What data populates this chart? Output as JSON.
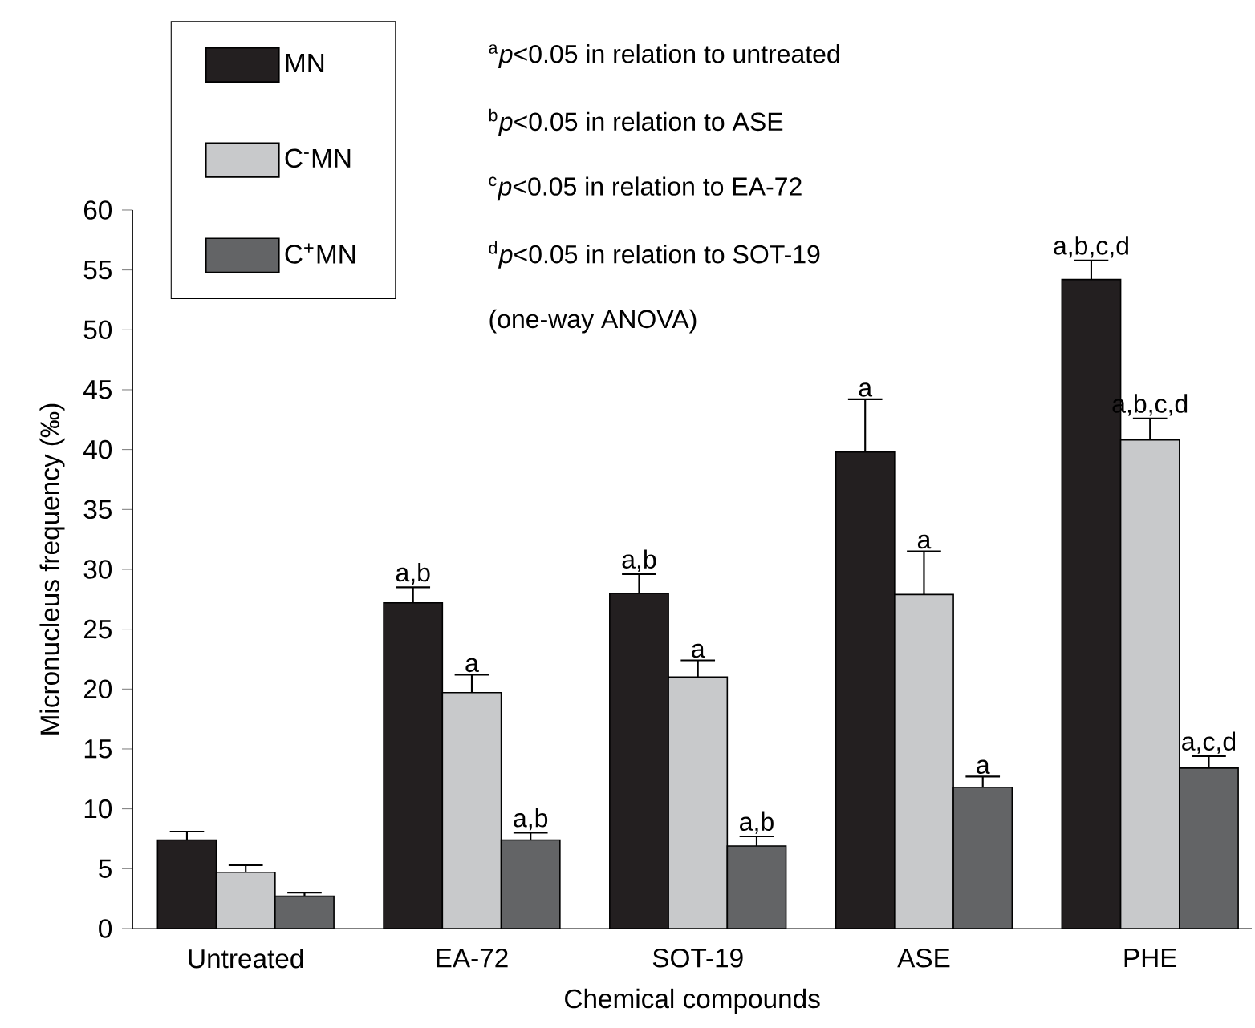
{
  "chart_data": {
    "type": "bar",
    "xlabel": "Chemical compounds",
    "ylabel": "Micronucleus frequency (‰)",
    "categories": [
      "Untreated",
      "EA-72",
      "SOT-19",
      "ASE",
      "PHE"
    ],
    "series": [
      {
        "name": "MN",
        "color": "#231f20",
        "values": [
          7.4,
          27.2,
          28.0,
          39.8,
          54.2
        ],
        "errors": [
          [
            7.4,
            8.1
          ],
          [
            27.2,
            28.5
          ],
          [
            28.0,
            29.6
          ],
          [
            39.8,
            44.2
          ],
          [
            54.2,
            55.8
          ]
        ],
        "value_labels": [
          null,
          "a,b",
          "a,b",
          "a",
          "a,b,c,d"
        ]
      },
      {
        "name": "C$^{-}$MN",
        "color": "#c8c9cb",
        "values": [
          4.7,
          19.7,
          21.0,
          27.9,
          40.8
        ],
        "errors": [
          [
            4.7,
            5.3
          ],
          [
            19.7,
            21.2
          ],
          [
            21.0,
            22.4
          ],
          [
            27.9,
            31.5
          ],
          [
            40.8,
            42.6
          ]
        ],
        "value_labels": [
          null,
          "a",
          "a",
          "a",
          "a,b,c,d"
        ]
      },
      {
        "name": "C$^{+}$MN",
        "color": "#636466",
        "values": [
          2.7,
          7.4,
          6.9,
          11.8,
          13.4
        ],
        "errors": [
          [
            2.7,
            3.0
          ],
          [
            7.4,
            8.0
          ],
          [
            6.9,
            7.7
          ],
          [
            11.8,
            12.7
          ],
          [
            13.4,
            14.4
          ]
        ],
        "value_labels": [
          null,
          "a,b",
          "a,b",
          "a",
          "a,c,d"
        ]
      }
    ],
    "ylim": [
      0,
      60
    ],
    "yticks": [
      0,
      5,
      10,
      15,
      20,
      25,
      30,
      35,
      40,
      45,
      50,
      55,
      60
    ],
    "legend": "top left",
    "grid": false,
    "annotations": [
      "$^{a}$*p*<0.05 in relation to untreated",
      "$^{b}$*p*<0.05 in relation to ASE",
      "$^{c}$*p*<0.05 in relation to EA-72",
      "$^{d}$*p*<0.05 in relation to SOT-19",
      "(one-way ANOVA)"
    ]
  }
}
